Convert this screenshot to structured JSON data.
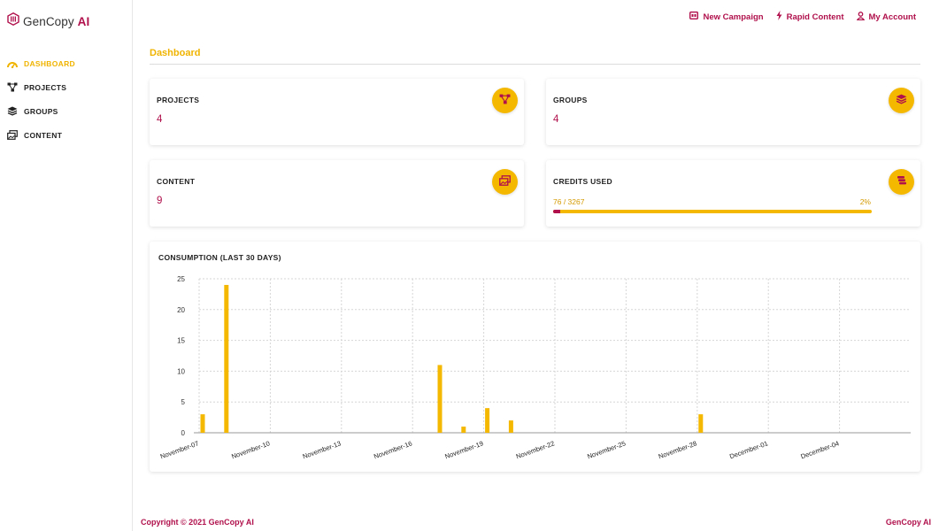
{
  "brand": {
    "name_part1": "GenCopy",
    "name_part2": "AI"
  },
  "sidebar": {
    "items": [
      {
        "label": "DASHBOARD",
        "icon": "dashboard-gauge-icon",
        "active": true
      },
      {
        "label": "PROJECTS",
        "icon": "projects-nodes-icon",
        "active": false
      },
      {
        "label": "GROUPS",
        "icon": "groups-layers-icon",
        "active": false
      },
      {
        "label": "CONTENT",
        "icon": "content-images-icon",
        "active": false
      }
    ]
  },
  "header": {
    "links": [
      {
        "label": "New Campaign",
        "icon": "campaign-icon"
      },
      {
        "label": "Rapid Content",
        "icon": "lightning-icon"
      },
      {
        "label": "My Account",
        "icon": "user-icon"
      }
    ]
  },
  "page": {
    "title": "Dashboard"
  },
  "cards": {
    "projects": {
      "label": "PROJECTS",
      "value": "4",
      "icon": "projects-nodes-icon"
    },
    "groups": {
      "label": "GROUPS",
      "value": "4",
      "icon": "groups-layers-icon"
    },
    "content": {
      "label": "CONTENT",
      "value": "9",
      "icon": "content-images-icon"
    },
    "credits": {
      "label": "CREDITS USED",
      "used_text": "76 / 3267",
      "percent_text": "2%",
      "used": 76,
      "total": 3267,
      "icon": "coins-icon"
    }
  },
  "chart_data": {
    "type": "bar",
    "title": "CONSUMPTION (LAST 30 DAYS)",
    "xlabel": "",
    "ylabel": "",
    "ylim": [
      0,
      25
    ],
    "yticks": [
      0,
      5,
      10,
      15,
      20,
      25
    ],
    "x_tick_labels": [
      "November-07",
      "November-10",
      "November-13",
      "November-16",
      "November-19",
      "November-22",
      "November-25",
      "November-28",
      "December-01",
      "December-04"
    ],
    "x_tick_positions": [
      "2021-11-07",
      "2021-11-10",
      "2021-11-13",
      "2021-11-16",
      "2021-11-19",
      "2021-11-22",
      "2021-11-25",
      "2021-11-28",
      "2021-12-01",
      "2021-12-04"
    ],
    "x_range": [
      "2021-11-07",
      "2021-12-07"
    ],
    "bars": [
      {
        "date": "2021-11-07",
        "value": 3
      },
      {
        "date": "2021-11-08",
        "value": 24
      },
      {
        "date": "2021-11-17",
        "value": 11
      },
      {
        "date": "2021-11-18",
        "value": 1
      },
      {
        "date": "2021-11-19",
        "value": 4
      },
      {
        "date": "2021-11-20",
        "value": 2
      },
      {
        "date": "2021-11-28",
        "value": 3
      }
    ],
    "bar_color": "#f5b800",
    "grid": true,
    "legend": "none"
  },
  "footer": {
    "copyright": "Copyright © 2021 GenCopy AI",
    "brand": "GenCopy AI"
  },
  "colors": {
    "accent": "#f5b800",
    "brand": "#b0104b"
  }
}
